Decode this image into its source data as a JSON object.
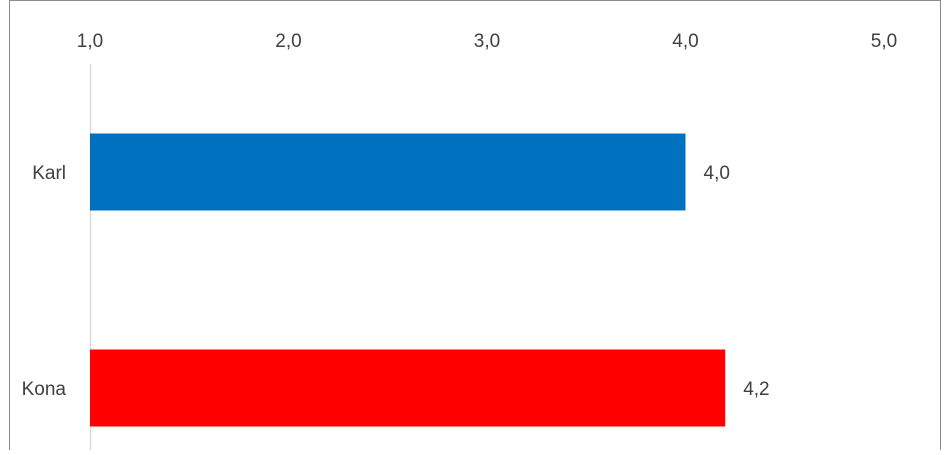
{
  "chart_data": {
    "type": "bar",
    "orientation": "horizontal",
    "categories": [
      "Karl",
      "Kona"
    ],
    "values": [
      4.0,
      4.2
    ],
    "data_labels": [
      "4,0",
      "4,2"
    ],
    "bar_colors": [
      "#0070C0",
      "#FF0000"
    ],
    "xlim": [
      1.0,
      5.0
    ],
    "x_ticks": [
      1.0,
      2.0,
      3.0,
      4.0,
      5.0
    ],
    "x_tick_labels": [
      "1,0",
      "2,0",
      "3,0",
      "4,0",
      "5,0"
    ],
    "x_axis_position": "top",
    "grid": false,
    "legend": "none",
    "title": "",
    "xlabel": "",
    "ylabel": ""
  },
  "colors": {
    "border": "#8c8c8c",
    "axis_line": "#d9d9d9",
    "text": "#404040",
    "background": "#ffffff"
  }
}
